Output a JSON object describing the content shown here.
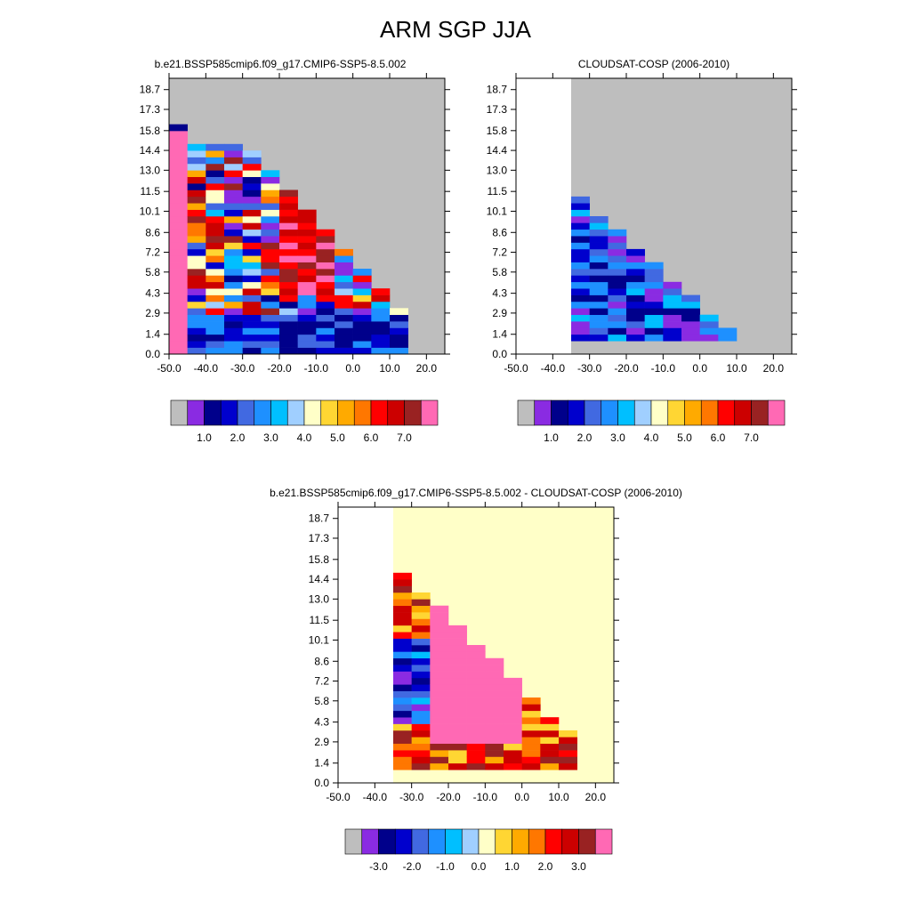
{
  "main_title": "ARM SGP JJA",
  "colors": {
    "missing": "#bebebe",
    "abs_scale": [
      "#bebebe",
      "#8a2be2",
      "#00008b",
      "#0000cd",
      "#4169e1",
      "#1e90ff",
      "#00bfff",
      "#a0cfff",
      "#ffffc8",
      "#ffd633",
      "#ffaa00",
      "#ff7700",
      "#ff0000",
      "#cc0000",
      "#992222",
      "#ff69b4"
    ],
    "diff_scale": [
      "#bebebe",
      "#8a2be2",
      "#00008b",
      "#0000cd",
      "#4169e1",
      "#1e90ff",
      "#00bfff",
      "#a0cfff",
      "#ffffc8",
      "#ffd633",
      "#ffaa00",
      "#ff7700",
      "#ff0000",
      "#cc0000",
      "#992222",
      "#ff69b4"
    ]
  },
  "chart_data": [
    {
      "type": "heatmap",
      "id": "model",
      "title": "b.e21.BSSP585cmip6.f09_g17.CMIP6-SSP5-8.5.002",
      "xlim": [
        -50,
        25
      ],
      "ylim": [
        0,
        19.5
      ],
      "x_ticks": [
        "-50.0",
        "-40.0",
        "-30.0",
        "-20.0",
        "-10.0",
        "0.0",
        "10.0",
        "20.0"
      ],
      "x_tick_values": [
        -50,
        -40,
        -30,
        -20,
        -10,
        0,
        10,
        20
      ],
      "y_ticks": [
        "0.0",
        "1.4",
        "2.9",
        "4.3",
        "5.8",
        "7.2",
        "8.6",
        "10.1",
        "11.5",
        "13.0",
        "14.4",
        "15.8",
        "17.3",
        "18.7"
      ],
      "y_tick_values": [
        0,
        1.4,
        2.9,
        4.3,
        5.8,
        7.2,
        8.6,
        10.1,
        11.5,
        13.0,
        14.4,
        15.8,
        17.3,
        18.7
      ],
      "colorbar_labels": [
        "1.0",
        "2.0",
        "3.0",
        "4.0",
        "5.0",
        "6.0",
        "7.0"
      ],
      "colorbar_label_values": [
        1,
        2,
        3,
        4,
        5,
        6,
        7
      ],
      "background": "missing"
    },
    {
      "type": "heatmap",
      "id": "obs",
      "title": "CLOUDSAT-COSP (2006-2010)",
      "xlim": [
        -50,
        25
      ],
      "ylim": [
        0,
        19.5
      ],
      "x_ticks": [
        "-50.0",
        "-40.0",
        "-30.0",
        "-20.0",
        "-10.0",
        "0.0",
        "10.0",
        "20.0"
      ],
      "x_tick_values": [
        -50,
        -40,
        -30,
        -20,
        -10,
        0,
        10,
        20
      ],
      "y_ticks": [
        "0.0",
        "1.4",
        "2.9",
        "4.3",
        "5.8",
        "7.2",
        "8.6",
        "10.1",
        "11.5",
        "13.0",
        "14.4",
        "15.8",
        "17.3",
        "18.7"
      ],
      "y_tick_values": [
        0,
        1.4,
        2.9,
        4.3,
        5.8,
        7.2,
        8.6,
        10.1,
        11.5,
        13.0,
        14.4,
        15.8,
        17.3,
        18.7
      ],
      "colorbar_labels": [
        "1.0",
        "2.0",
        "3.0",
        "4.0",
        "5.0",
        "6.0",
        "7.0"
      ],
      "colorbar_label_values": [
        1,
        2,
        3,
        4,
        5,
        6,
        7
      ],
      "valid_xmin": -35,
      "valid_ymin": 0.9,
      "background": "missing"
    },
    {
      "type": "heatmap",
      "id": "diff",
      "title": "b.e21.BSSP585cmip6.f09_g17.CMIP6-SSP5-8.5.002 - CLOUDSAT-COSP (2006-2010)",
      "xlim": [
        -50,
        25
      ],
      "ylim": [
        0,
        19.5
      ],
      "x_ticks": [
        "-50.0",
        "-40.0",
        "-30.0",
        "-20.0",
        "-10.0",
        "0.0",
        "10.0",
        "20.0"
      ],
      "x_tick_values": [
        -50,
        -40,
        -30,
        -20,
        -10,
        0,
        10,
        20
      ],
      "y_ticks": [
        "0.0",
        "1.4",
        "2.9",
        "4.3",
        "5.8",
        "7.2",
        "8.6",
        "10.1",
        "11.5",
        "13.0",
        "14.4",
        "15.8",
        "17.3",
        "18.7"
      ],
      "y_tick_values": [
        0,
        1.4,
        2.9,
        4.3,
        5.8,
        7.2,
        8.6,
        10.1,
        11.5,
        13.0,
        14.4,
        15.8,
        17.3,
        18.7
      ],
      "colorbar_labels": [
        "-3.0",
        "-2.0",
        "-1.0",
        "0.0",
        "1.0",
        "2.0",
        "3.0"
      ],
      "colorbar_label_values": [
        -3,
        -2,
        -1,
        0,
        1,
        2,
        3
      ],
      "valid_xmin": -35,
      "valid_ymin": 0.9,
      "background": "zero"
    }
  ]
}
